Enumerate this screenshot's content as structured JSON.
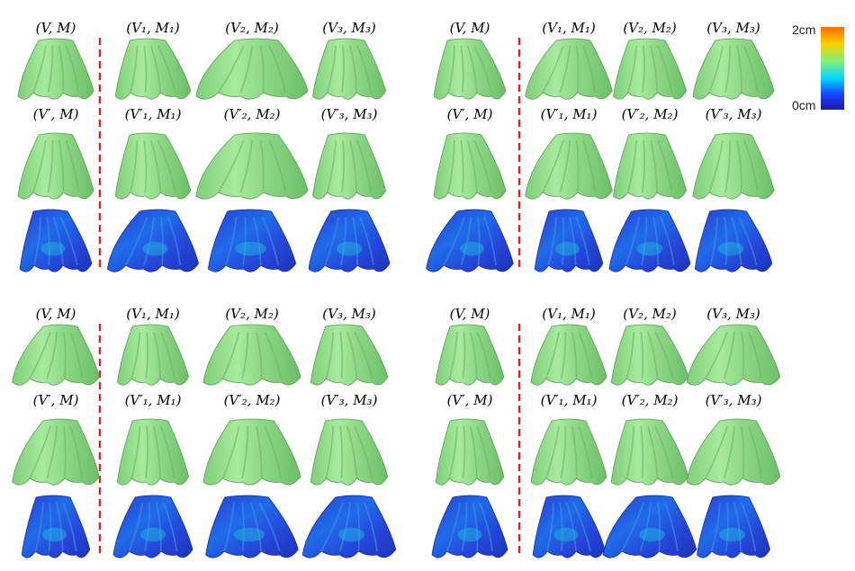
{
  "labels": {
    "top": [
      "(V, M)",
      "(V₁, M₁)",
      "(V₂, M₂)",
      "(V₃, M₃)"
    ],
    "bottom": [
      "(V′, M)",
      "(V′₁, M₁)",
      "(V′₂, M₂)",
      "(V′₃, M₃)"
    ]
  },
  "colorbar": {
    "max_label": "2cm",
    "min_label": "0cm",
    "colors": [
      "#ff6a00",
      "#ffd000",
      "#7ff07a",
      "#00d8ff",
      "#1a40ff",
      "#1a1aa0"
    ]
  },
  "colors": {
    "cloth": "#9fe39a",
    "cloth_dark": "#4f8f4c",
    "error_base": "#2b4be0",
    "error_high": "#22c2e0",
    "divider": "#e02020"
  },
  "panels": [
    {
      "name": "panel-top-left"
    },
    {
      "name": "panel-top-right"
    },
    {
      "name": "panel-bottom-left"
    },
    {
      "name": "panel-bottom-right"
    }
  ]
}
